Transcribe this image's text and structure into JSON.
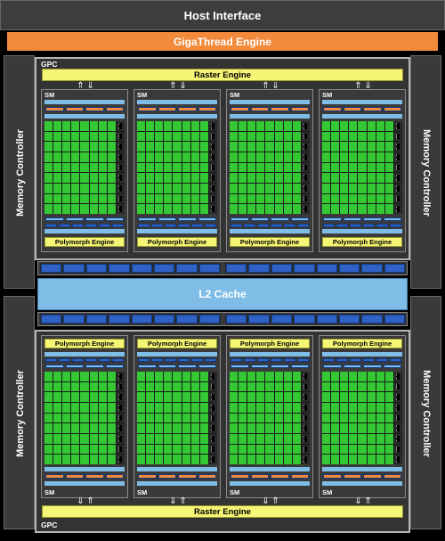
{
  "host": {
    "label": "Host Interface"
  },
  "gigathread": {
    "label": "GigaThread Engine"
  },
  "memory_controller": {
    "label": "Memory Controller"
  },
  "gpc": {
    "label": "GPC"
  },
  "raster": {
    "label": "Raster Engine"
  },
  "sm": {
    "label": "SM"
  },
  "polymorph": {
    "label": "Polymorph Engine"
  },
  "l2": {
    "label": "L2 Cache"
  },
  "colors": {
    "background": "#000000",
    "panel": "#3a3a3a",
    "gigathread": "#f28a3c",
    "raster": "#f6f676",
    "polymorph": "#f6f676",
    "l2": "#7fbde6",
    "core": "#34c934",
    "orange_unit": "#f28a3c",
    "light_blue_unit": "#7fbde6",
    "dark_blue_unit": "#2f62c4"
  },
  "structure": {
    "gpc_count": 2,
    "sm_per_gpc": 4,
    "memory_controllers": 4
  }
}
